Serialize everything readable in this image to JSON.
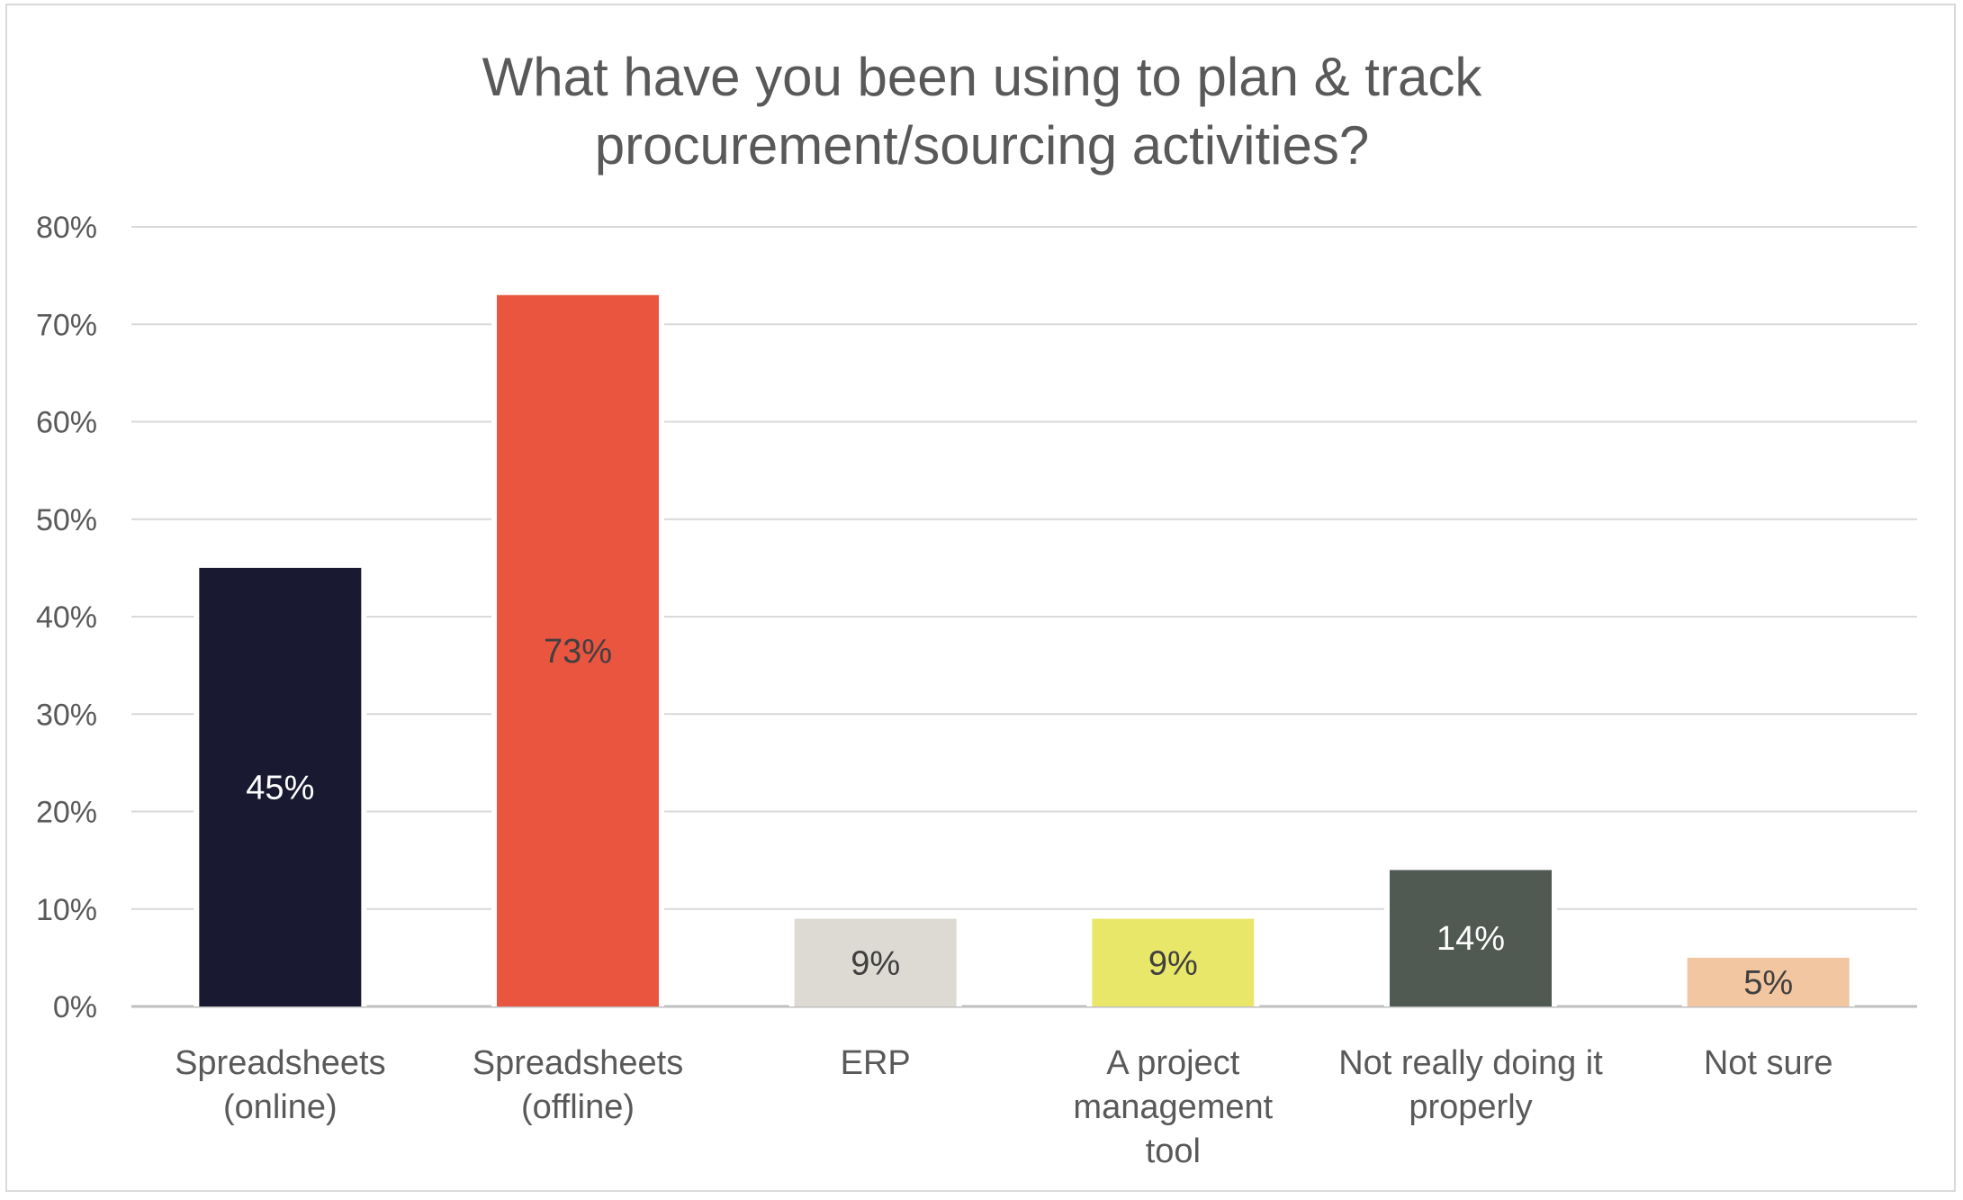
{
  "chart_data": {
    "type": "bar",
    "title_lines": [
      "What have you been using to plan & track",
      "procurement/sourcing activities?"
    ],
    "categories": [
      [
        "Spreadsheets",
        "(online)"
      ],
      [
        "Spreadsheets",
        "(offline)"
      ],
      [
        "ERP"
      ],
      [
        "A project",
        "management",
        "tool"
      ],
      [
        "Not really doing it",
        "properly"
      ],
      [
        "Not sure"
      ]
    ],
    "values": [
      45,
      73,
      9,
      9,
      14,
      5
    ],
    "data_labels": [
      "45%",
      "73%",
      "9%",
      "9%",
      "14%",
      "5%"
    ],
    "bar_colors": [
      "#191932",
      "#ea5540",
      "#dcdad2",
      "#e8e76a",
      "#515a52",
      "#f2c6a0"
    ],
    "label_colors": [
      "#ffffff",
      "#404040",
      "#404040",
      "#404040",
      "#ffffff",
      "#404040"
    ],
    "y_ticks": [
      "0%",
      "10%",
      "20%",
      "30%",
      "40%",
      "50%",
      "60%",
      "70%",
      "80%"
    ],
    "ylim": [
      0,
      80
    ],
    "grid": true,
    "legend": "none"
  }
}
